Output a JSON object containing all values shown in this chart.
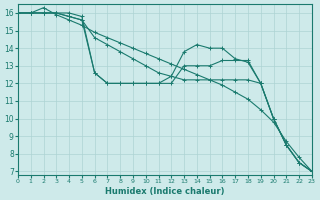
{
  "bg_color": "#ceeaea",
  "line_color": "#1a7a6e",
  "grid_color": "#aed4d4",
  "xlabel": "Humidex (Indice chaleur)",
  "xlim": [
    0,
    23
  ],
  "ylim": [
    6.8,
    16.5
  ],
  "xticks": [
    0,
    1,
    2,
    3,
    4,
    5,
    6,
    7,
    8,
    9,
    10,
    11,
    12,
    13,
    14,
    15,
    16,
    17,
    18,
    19,
    20,
    21,
    22,
    23
  ],
  "yticks": [
    7,
    8,
    9,
    10,
    11,
    12,
    13,
    14,
    15,
    16
  ],
  "series": [
    {
      "x": [
        0,
        1,
        2,
        3,
        4,
        5,
        6,
        7,
        8,
        9,
        10,
        11,
        12,
        13,
        14,
        15,
        16,
        17,
        18,
        19,
        20,
        21,
        22,
        23
      ],
      "y": [
        16,
        16,
        16.3,
        15.9,
        15.6,
        15.3,
        14.9,
        14.6,
        14.3,
        14.0,
        13.7,
        13.4,
        13.1,
        12.8,
        12.5,
        12.2,
        11.9,
        11.5,
        11.1,
        10.5,
        9.8,
        8.7,
        7.8,
        7
      ]
    },
    {
      "x": [
        0,
        1,
        2,
        3,
        4,
        5,
        6,
        7,
        8,
        9,
        10,
        11,
        12,
        13,
        14,
        15,
        16,
        17,
        18,
        19,
        20,
        21,
        22,
        23
      ],
      "y": [
        16,
        16,
        16,
        16,
        16,
        15.8,
        12.6,
        12,
        12,
        12,
        12,
        12,
        12.4,
        13.8,
        14.2,
        14.0,
        14.0,
        13.4,
        13.2,
        12.0,
        10.0,
        8.5,
        7.5,
        7
      ]
    },
    {
      "x": [
        0,
        1,
        2,
        3,
        4,
        5,
        6,
        7,
        8,
        9,
        10,
        11,
        12,
        13,
        14,
        15,
        16,
        17,
        18,
        19,
        20,
        21,
        22,
        23
      ],
      "y": [
        16,
        16,
        16,
        16,
        15.8,
        15.6,
        12.6,
        12,
        12,
        12,
        12,
        12,
        12,
        13,
        13,
        13,
        13.3,
        13.3,
        13.3,
        12.0,
        10.0,
        8.5,
        7.5,
        7
      ]
    },
    {
      "x": [
        0,
        1,
        2,
        3,
        4,
        5,
        6,
        7,
        8,
        9,
        10,
        11,
        12,
        13,
        14,
        15,
        16,
        17,
        18,
        19,
        20,
        21,
        22,
        23
      ],
      "y": [
        16,
        16,
        16,
        16,
        15.8,
        15.6,
        14.6,
        14.2,
        13.8,
        13.4,
        13.0,
        12.6,
        12.4,
        12.2,
        12.2,
        12.2,
        12.2,
        12.2,
        12.2,
        12.0,
        10.0,
        8.5,
        7.5,
        7
      ]
    }
  ]
}
